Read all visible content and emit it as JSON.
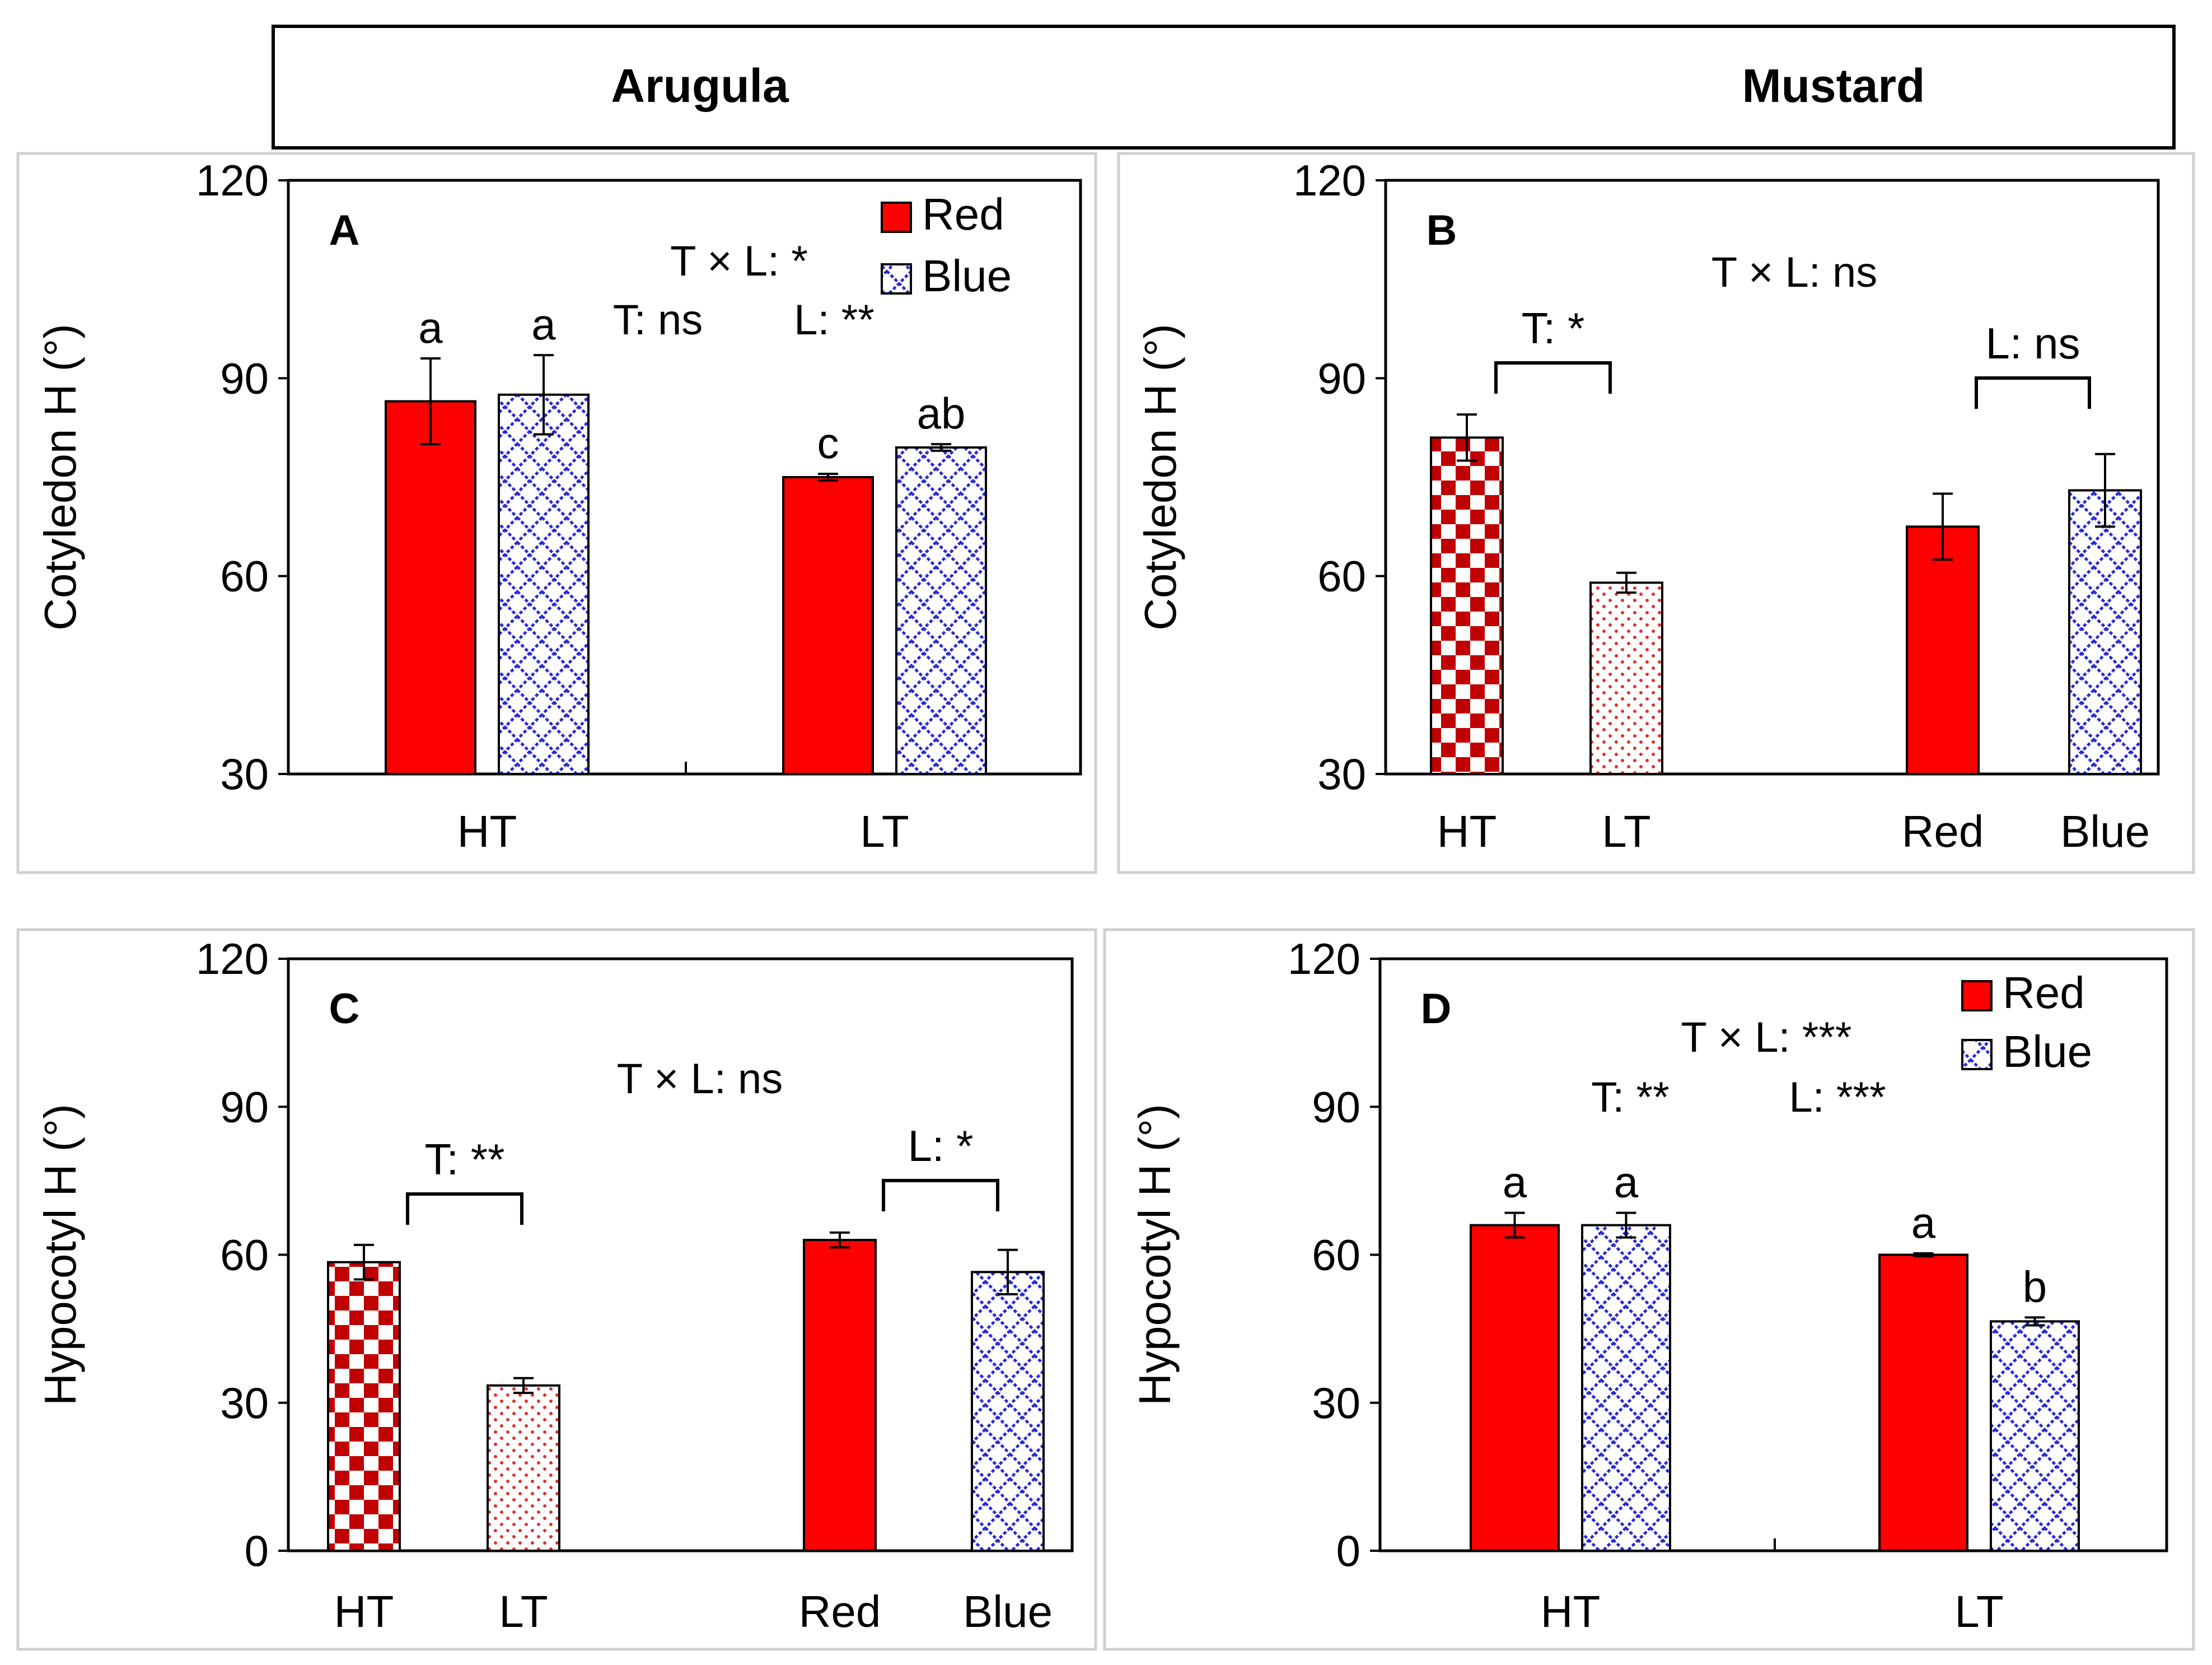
{
  "header": {
    "left_title": "Arugula",
    "right_title": "Mustard"
  },
  "legend": {
    "red_label": "Red",
    "blue_label": "Blue"
  },
  "colors": {
    "red": "#ff0000",
    "dark_red": "#c00000",
    "blue": "#2b2bd6",
    "frame": "#000000",
    "panel_border": "#d0d0d0"
  },
  "chart_data": [
    {
      "panel": "A",
      "type": "bar",
      "ylabel": "Cotyledon H (°)",
      "ylim": [
        30,
        120
      ],
      "yticks": [
        "30",
        "60",
        "90",
        "120"
      ],
      "legend": true,
      "stats": [
        "T × L: *",
        "T: ns",
        "L: **"
      ],
      "groups": [
        {
          "label": "HT",
          "bars": [
            {
              "series": "Red",
              "value": 86.5,
              "err": 6.5,
              "letter": "a"
            },
            {
              "series": "Blue",
              "value": 87.5,
              "err": 6.0,
              "letter": "a"
            }
          ]
        },
        {
          "label": "LT",
          "bars": [
            {
              "series": "Red",
              "value": 75.0,
              "err": 0.5,
              "letter": "c"
            },
            {
              "series": "Blue",
              "value": 79.5,
              "err": 0.5,
              "letter": "ab"
            }
          ]
        }
      ]
    },
    {
      "panel": "B",
      "type": "bar",
      "ylabel": "Cotyledon H (°)",
      "ylim": [
        30,
        120
      ],
      "yticks": [
        "30",
        "60",
        "90",
        "120"
      ],
      "legend": false,
      "stats": [
        "T × L: ns"
      ],
      "brackets": [
        "T: *",
        "L: ns"
      ],
      "categories": [
        "HT",
        "LT",
        "Red",
        "Blue"
      ],
      "bars": [
        {
          "label": "HT",
          "value": 81.0,
          "err": 3.5
        },
        {
          "label": "LT",
          "value": 59.0,
          "err": 1.5
        },
        {
          "label": "Red",
          "value": 67.5,
          "err": 5.0
        },
        {
          "label": "Blue",
          "value": 73.0,
          "err": 5.5
        }
      ]
    },
    {
      "panel": "C",
      "type": "bar",
      "ylabel": "Hypocotyl H (°)",
      "ylim": [
        0,
        120
      ],
      "yticks": [
        "0",
        "30",
        "60",
        "90",
        "120"
      ],
      "legend": false,
      "stats": [
        "T × L: ns"
      ],
      "brackets": [
        "T: **",
        "L: *"
      ],
      "categories": [
        "HT",
        "LT",
        "Red",
        "Blue"
      ],
      "bars": [
        {
          "label": "HT",
          "value": 58.5,
          "err": 3.5
        },
        {
          "label": "LT",
          "value": 33.5,
          "err": 1.5
        },
        {
          "label": "Red",
          "value": 63.0,
          "err": 1.5
        },
        {
          "label": "Blue",
          "value": 56.5,
          "err": 4.5
        }
      ]
    },
    {
      "panel": "D",
      "type": "bar",
      "ylabel": "Hypocotyl H (°)",
      "ylim": [
        0,
        120
      ],
      "yticks": [
        "0",
        "30",
        "60",
        "90",
        "120"
      ],
      "legend": true,
      "stats": [
        "T × L: ***",
        "T: **",
        "L: ***"
      ],
      "groups": [
        {
          "label": "HT",
          "bars": [
            {
              "series": "Red",
              "value": 66.0,
              "err": 2.5,
              "letter": "a"
            },
            {
              "series": "Blue",
              "value": 66.0,
              "err": 2.5,
              "letter": "a"
            }
          ]
        },
        {
          "label": "LT",
          "bars": [
            {
              "series": "Red",
              "value": 60.0,
              "err": 0.3,
              "letter": "a"
            },
            {
              "series": "Blue",
              "value": 46.5,
              "err": 0.8,
              "letter": "b"
            }
          ]
        }
      ]
    }
  ]
}
